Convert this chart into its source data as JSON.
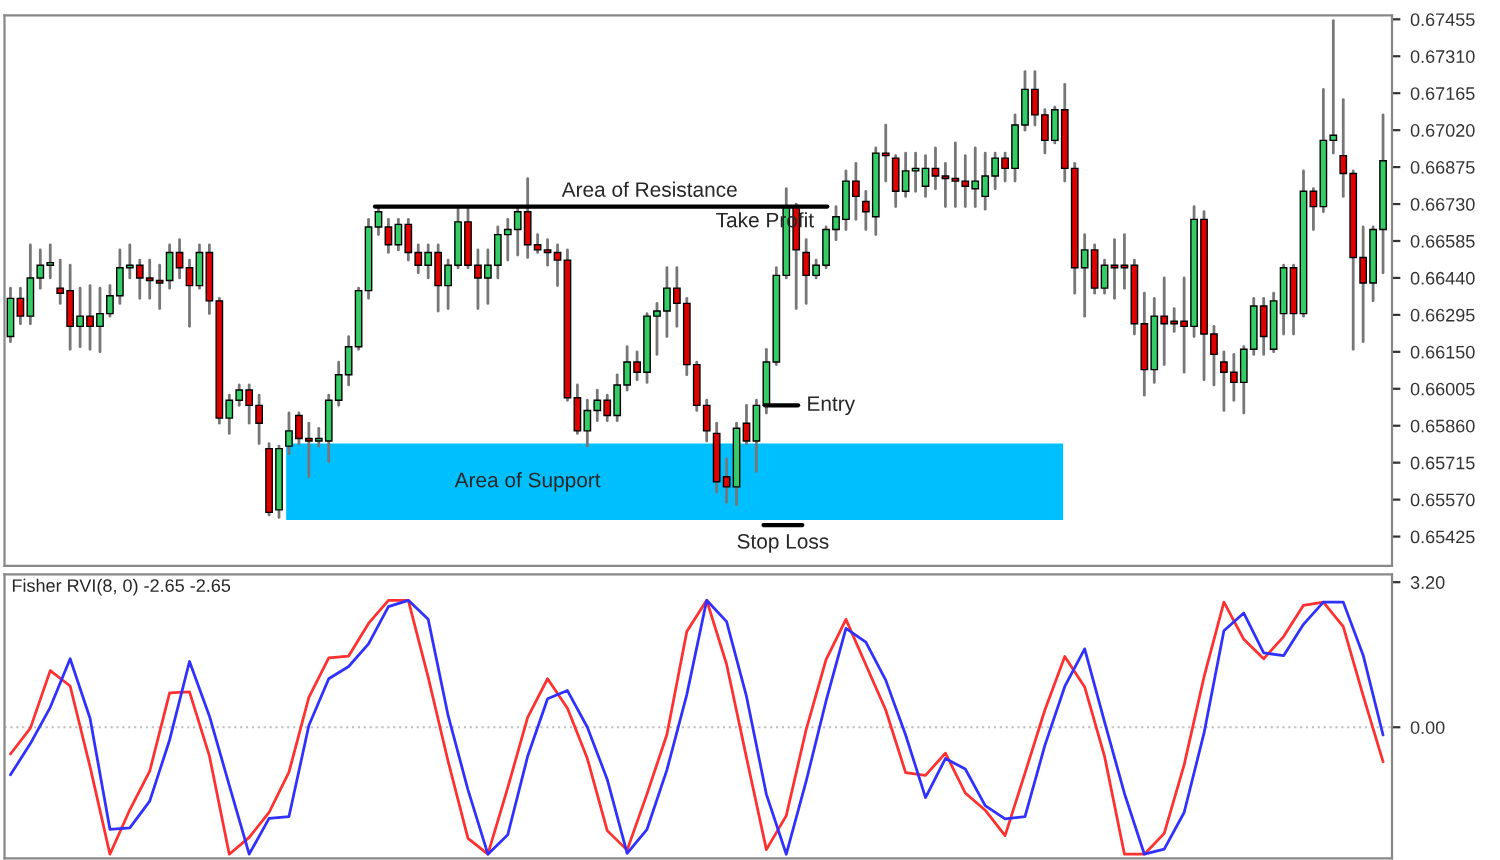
{
  "chart_data": [
    {
      "type": "candlestick",
      "categories": [
        null,
        null,
        null,
        null,
        null,
        null,
        null,
        null,
        null,
        null,
        null,
        null,
        null,
        null,
        null,
        null,
        null,
        null,
        null,
        null,
        null,
        null,
        null,
        null,
        null,
        null,
        null,
        null,
        null,
        null,
        null,
        null,
        null,
        null,
        null,
        null,
        null,
        null,
        null,
        null,
        null,
        null,
        null,
        null,
        null,
        null,
        null,
        null,
        null,
        null,
        null,
        null,
        null,
        null,
        null,
        null,
        null,
        null,
        null,
        null,
        null,
        null,
        null,
        null,
        null,
        null,
        null,
        null,
        null,
        null,
        null,
        null,
        null,
        null,
        null,
        null,
        null,
        null,
        null,
        null,
        null,
        null,
        null,
        null,
        null,
        null,
        null,
        null,
        null,
        null,
        null,
        null,
        null,
        null,
        null,
        null,
        null,
        null,
        null,
        null,
        null,
        null,
        null,
        null,
        null,
        null,
        null,
        null,
        null,
        null,
        null,
        null,
        null,
        null,
        null,
        null,
        null,
        null,
        null,
        null,
        null,
        null,
        null,
        null,
        null,
        null,
        null,
        null,
        null,
        null,
        null,
        null,
        null,
        null,
        null,
        null,
        null,
        null,
        null
      ],
      "ohlc": [
        [
          0.6621,
          0.664,
          0.6619,
          0.6636
        ],
        [
          0.6636,
          0.664,
          0.6626,
          0.6629
        ],
        [
          0.6629,
          0.6657,
          0.6626,
          0.6644
        ],
        [
          0.6644,
          0.6655,
          0.664,
          0.6649
        ],
        [
          0.6649,
          0.6657,
          0.6644,
          0.665
        ],
        [
          0.664,
          0.6651,
          0.6634,
          0.6638
        ],
        [
          0.6639,
          0.6649,
          0.6616,
          0.6625
        ],
        [
          0.6625,
          0.664,
          0.6617,
          0.6629
        ],
        [
          0.6629,
          0.6641,
          0.6616,
          0.6625
        ],
        [
          0.6625,
          0.664,
          0.6615,
          0.663
        ],
        [
          0.663,
          0.6641,
          0.6629,
          0.6637
        ],
        [
          0.6637,
          0.6655,
          0.6634,
          0.6648
        ],
        [
          0.6648,
          0.6657,
          0.6644,
          0.6649
        ],
        [
          0.6649,
          0.6651,
          0.6636,
          0.6644
        ],
        [
          0.6644,
          0.6651,
          0.6636,
          0.6643
        ],
        [
          0.6643,
          0.6649,
          0.6632,
          0.6642
        ],
        [
          0.6643,
          0.6657,
          0.664,
          0.6654
        ],
        [
          0.6654,
          0.6659,
          0.6644,
          0.6648
        ],
        [
          0.6648,
          0.6651,
          0.6625,
          0.6641
        ],
        [
          0.6641,
          0.6657,
          0.664,
          0.6654
        ],
        [
          0.6654,
          0.6657,
          0.663,
          0.6635
        ],
        [
          0.6635,
          0.6636,
          0.6587,
          0.6589
        ],
        [
          0.6589,
          0.6598,
          0.6583,
          0.6596
        ],
        [
          0.6596,
          0.6602,
          0.6594,
          0.66
        ],
        [
          0.66,
          0.6602,
          0.6587,
          0.6594
        ],
        [
          0.6594,
          0.6598,
          0.6579,
          0.6587
        ],
        [
          0.6577,
          0.6579,
          0.6551,
          0.6552
        ],
        [
          0.6553,
          0.6578,
          0.655,
          0.6577
        ],
        [
          0.6578,
          0.6591,
          0.6575,
          0.6584
        ],
        [
          0.659,
          0.6591,
          0.6579,
          0.6581
        ],
        [
          0.6581,
          0.6587,
          0.6566,
          0.658
        ],
        [
          0.658,
          0.6585,
          0.6578,
          0.6581
        ],
        [
          0.658,
          0.6598,
          0.6572,
          0.6596
        ],
        [
          0.6596,
          0.6611,
          0.6594,
          0.6606
        ],
        [
          0.6606,
          0.6621,
          0.6602,
          0.6617
        ],
        [
          0.6617,
          0.664,
          0.6616,
          0.6639
        ],
        [
          0.6639,
          0.6667,
          0.6636,
          0.6664
        ],
        [
          0.6664,
          0.6672,
          0.6661,
          0.667
        ],
        [
          0.6664,
          0.6667,
          0.6654,
          0.6657
        ],
        [
          0.6657,
          0.6667,
          0.6655,
          0.6665
        ],
        [
          0.6665,
          0.6667,
          0.6651,
          0.6654
        ],
        [
          0.6654,
          0.6657,
          0.6646,
          0.6649
        ],
        [
          0.6649,
          0.6657,
          0.6644,
          0.6654
        ],
        [
          0.6654,
          0.6657,
          0.6631,
          0.6641
        ],
        [
          0.6641,
          0.6651,
          0.6632,
          0.6649
        ],
        [
          0.6649,
          0.6672,
          0.6648,
          0.6666
        ],
        [
          0.6666,
          0.6672,
          0.6648,
          0.6649
        ],
        [
          0.6649,
          0.6655,
          0.6632,
          0.6644
        ],
        [
          0.6644,
          0.6655,
          0.6634,
          0.6649
        ],
        [
          0.6649,
          0.6664,
          0.6644,
          0.6661
        ],
        [
          0.6661,
          0.6667,
          0.6651,
          0.6663
        ],
        [
          0.6663,
          0.6672,
          0.6653,
          0.667
        ],
        [
          0.667,
          0.6683,
          0.6652,
          0.6657
        ],
        [
          0.6657,
          0.6661,
          0.6654,
          0.6655
        ],
        [
          0.6655,
          0.6659,
          0.6649,
          0.6654
        ],
        [
          0.6654,
          0.6657,
          0.6641,
          0.6651
        ],
        [
          0.6651,
          0.6655,
          0.6596,
          0.6597
        ],
        [
          0.6597,
          0.6602,
          0.6583,
          0.6584
        ],
        [
          0.6584,
          0.6596,
          0.6578,
          0.6592
        ],
        [
          0.6592,
          0.66,
          0.6588,
          0.6596
        ],
        [
          0.6596,
          0.6598,
          0.6588,
          0.659
        ],
        [
          0.659,
          0.6606,
          0.6588,
          0.6602
        ],
        [
          0.6602,
          0.6617,
          0.66,
          0.6611
        ],
        [
          0.6611,
          0.6615,
          0.6604,
          0.6607
        ],
        [
          0.6607,
          0.663,
          0.6603,
          0.6629
        ],
        [
          0.6629,
          0.6634,
          0.6614,
          0.6631
        ],
        [
          0.6631,
          0.6648,
          0.6621,
          0.664
        ],
        [
          0.664,
          0.6648,
          0.6625,
          0.6634
        ],
        [
          0.6634,
          0.6636,
          0.6606,
          0.661
        ],
        [
          0.661,
          0.6611,
          0.6592,
          0.6594
        ],
        [
          0.6594,
          0.6596,
          0.658,
          0.6584
        ],
        [
          0.6583,
          0.6587,
          0.656,
          0.6564
        ],
        [
          0.6566,
          0.6573,
          0.6556,
          0.6562
        ],
        [
          0.6562,
          0.6587,
          0.6555,
          0.6585
        ],
        [
          0.6587,
          0.6594,
          0.6579,
          0.658
        ],
        [
          0.658,
          0.6596,
          0.6568,
          0.6594
        ],
        [
          0.6594,
          0.6616,
          0.6591,
          0.6611
        ],
        [
          0.6611,
          0.6648,
          0.661,
          0.6645
        ],
        [
          0.6645,
          0.6679,
          0.6644,
          0.6672
        ],
        [
          0.6672,
          0.6673,
          0.6632,
          0.6655
        ],
        [
          0.6654,
          0.6659,
          0.6634,
          0.6645
        ],
        [
          0.6645,
          0.6651,
          0.6644,
          0.6649
        ],
        [
          0.6649,
          0.6664,
          0.6648,
          0.6663
        ],
        [
          0.6663,
          0.6672,
          0.6659,
          0.6668
        ],
        [
          0.6667,
          0.6686,
          0.6663,
          0.6682
        ],
        [
          0.6682,
          0.6689,
          0.6667,
          0.6676
        ],
        [
          0.6674,
          0.6678,
          0.6663,
          0.667
        ],
        [
          0.6668,
          0.6695,
          0.6661,
          0.6693
        ],
        [
          0.6693,
          0.6704,
          0.6682,
          0.6692
        ],
        [
          0.6691,
          0.6692,
          0.6672,
          0.6678
        ],
        [
          0.6678,
          0.6693,
          0.6676,
          0.6686
        ],
        [
          0.6686,
          0.6693,
          0.6678,
          0.6687
        ],
        [
          0.668,
          0.6692,
          0.6676,
          0.6687
        ],
        [
          0.6687,
          0.6695,
          0.6679,
          0.6684
        ],
        [
          0.6684,
          0.6689,
          0.6672,
          0.6683
        ],
        [
          0.6683,
          0.6697,
          0.6672,
          0.6682
        ],
        [
          0.6682,
          0.6692,
          0.6672,
          0.668
        ],
        [
          0.6679,
          0.6695,
          0.6672,
          0.6682
        ],
        [
          0.6676,
          0.6693,
          0.6671,
          0.6684
        ],
        [
          0.6684,
          0.6693,
          0.6679,
          0.6691
        ],
        [
          0.6691,
          0.6693,
          0.6682,
          0.6687
        ],
        [
          0.6687,
          0.6708,
          0.6682,
          0.6704
        ],
        [
          0.6704,
          0.6725,
          0.6702,
          0.6718
        ],
        [
          0.6718,
          0.6725,
          0.6704,
          0.6708
        ],
        [
          0.6708,
          0.671,
          0.6693,
          0.6698
        ],
        [
          0.6698,
          0.6711,
          0.6697,
          0.671
        ],
        [
          0.671,
          0.672,
          0.6682,
          0.6687
        ],
        [
          0.6687,
          0.6689,
          0.6638,
          0.6648
        ],
        [
          0.6648,
          0.6661,
          0.6629,
          0.6655
        ],
        [
          0.6655,
          0.6657,
          0.6638,
          0.664
        ],
        [
          0.664,
          0.6651,
          0.6638,
          0.6649
        ],
        [
          0.6649,
          0.6659,
          0.6636,
          0.6648
        ],
        [
          0.6649,
          0.6661,
          0.664,
          0.6648
        ],
        [
          0.6649,
          0.6651,
          0.6622,
          0.6626
        ],
        [
          0.6626,
          0.6638,
          0.6598,
          0.6608
        ],
        [
          0.6608,
          0.6636,
          0.6603,
          0.6629
        ],
        [
          0.6629,
          0.6644,
          0.661,
          0.6626
        ],
        [
          0.6627,
          0.6632,
          0.6623,
          0.6626
        ],
        [
          0.6627,
          0.6644,
          0.6607,
          0.6625
        ],
        [
          0.6625,
          0.6672,
          0.6621,
          0.6667
        ],
        [
          0.6667,
          0.667,
          0.6604,
          0.6622
        ],
        [
          0.6622,
          0.6625,
          0.6602,
          0.6614
        ],
        [
          0.6611,
          0.6615,
          0.6592,
          0.6607
        ],
        [
          0.6607,
          0.6614,
          0.6596,
          0.6603
        ],
        [
          0.6603,
          0.6617,
          0.6591,
          0.6616
        ],
        [
          0.6616,
          0.6636,
          0.6614,
          0.6633
        ],
        [
          0.6633,
          0.6636,
          0.6614,
          0.6621
        ],
        [
          0.6616,
          0.6638,
          0.6615,
          0.6635
        ],
        [
          0.663,
          0.6649,
          0.6622,
          0.6648
        ],
        [
          0.6648,
          0.6649,
          0.6622,
          0.663
        ],
        [
          0.663,
          0.6686,
          0.6629,
          0.6678
        ],
        [
          0.6678,
          0.6679,
          0.6663,
          0.6672
        ],
        [
          0.6672,
          0.6718,
          0.667,
          0.6698
        ],
        [
          0.6698,
          0.6745,
          0.6693,
          0.67
        ],
        [
          0.6692,
          0.6714,
          0.6676,
          0.6685
        ],
        [
          0.6685,
          0.6686,
          0.6616,
          0.6652
        ],
        [
          0.6652,
          0.6664,
          0.6619,
          0.6642
        ],
        [
          0.6642,
          0.6664,
          0.6635,
          0.6663
        ],
        [
          0.6663,
          0.6708,
          0.6646,
          0.669
        ]
      ],
      "ylim": [
        0.6531,
        0.6747
      ],
      "yticks": [
        {
          "value": 0.67455,
          "label": "0.67455"
        },
        {
          "value": 0.6731,
          "label": "0.67310"
        },
        {
          "value": 0.67165,
          "label": "0.67165"
        },
        {
          "value": 0.6702,
          "label": "0.67020"
        },
        {
          "value": 0.66875,
          "label": "0.66875"
        },
        {
          "value": 0.6673,
          "label": "0.66730"
        },
        {
          "value": 0.66585,
          "label": "0.66585"
        },
        {
          "value": 0.6644,
          "label": "0.66440"
        },
        {
          "value": 0.66295,
          "label": "0.66295"
        },
        {
          "value": 0.6615,
          "label": "0.66150"
        },
        {
          "value": 0.66005,
          "label": "0.66005"
        },
        {
          "value": 0.6586,
          "label": "0.65860"
        },
        {
          "value": 0.65715,
          "label": "0.65715"
        },
        {
          "value": 0.6557,
          "label": "0.65570"
        },
        {
          "value": 0.65425,
          "label": "0.65425"
        }
      ],
      "ref_lines": [
        {
          "axis": "y",
          "value": 0.6672,
          "label": "Area of Resistance",
          "color": "#000000"
        },
        {
          "axis": "y",
          "value": 0.6594,
          "label": "Entry",
          "color": "#000000"
        },
        {
          "axis": "y",
          "value": 0.6547,
          "label": "Stop Loss",
          "color": "#000000"
        }
      ],
      "bands": [
        {
          "axis": "y",
          "from": 0.6549,
          "to": 0.6579,
          "label": "Area of Support",
          "color": "#00bfff"
        }
      ],
      "annotations": [
        "Take Profit"
      ],
      "tick_labels": "y",
      "grid": false
    },
    {
      "type": "line",
      "title": "Fisher RVI(8, 0) -2.65 -2.65",
      "categories": [
        null,
        null,
        null,
        null,
        null,
        null,
        null,
        null,
        null,
        null,
        null,
        null,
        null,
        null,
        null,
        null,
        null,
        null,
        null,
        null,
        null,
        null,
        null,
        null,
        null,
        null,
        null,
        null,
        null,
        null,
        null,
        null,
        null,
        null,
        null,
        null,
        null,
        null,
        null,
        null,
        null,
        null,
        null,
        null,
        null,
        null,
        null,
        null,
        null,
        null,
        null,
        null,
        null,
        null,
        null,
        null,
        null,
        null,
        null,
        null,
        null,
        null,
        null,
        null,
        null,
        null,
        null,
        null,
        null,
        null
      ],
      "series": [
        {
          "color": "#ff3030",
          "values": [
            -0.59,
            -0.02,
            1.25,
            0.91,
            -0.87,
            -2.8,
            -1.82,
            -0.97,
            0.76,
            0.78,
            -0.63,
            -2.8,
            -2.43,
            -1.88,
            -0.99,
            0.66,
            1.53,
            1.57,
            2.29,
            2.8,
            2.8,
            1.1,
            -0.75,
            -2.45,
            -2.8,
            -1.33,
            0.22,
            1.07,
            0.42,
            -0.69,
            -2.28,
            -2.71,
            -1.47,
            -0.16,
            2.11,
            2.8,
            1.39,
            -0.67,
            -2.7,
            -1.95,
            -0.05,
            1.49,
            2.38,
            1.38,
            0.38,
            -1.0,
            -1.06,
            -0.57,
            -1.45,
            -1.83,
            -2.39,
            -1.01,
            0.38,
            1.56,
            0.89,
            -0.64,
            -2.8,
            -2.8,
            -2.34,
            -0.83,
            1.11,
            2.76,
            1.94,
            1.51,
            2.0,
            2.69,
            2.76,
            2.22,
            0.7,
            -0.76
          ]
        },
        {
          "color": "#3030ff",
          "values": [
            -1.05,
            -0.36,
            0.44,
            1.51,
            0.2,
            -2.25,
            -2.22,
            -1.63,
            -0.28,
            1.45,
            0.25,
            -1.28,
            -2.8,
            -2.01,
            -1.97,
            0.04,
            1.07,
            1.34,
            1.84,
            2.66,
            2.8,
            2.38,
            0.26,
            -1.38,
            -2.8,
            -2.37,
            -0.64,
            0.63,
            0.81,
            0.0,
            -1.15,
            -2.78,
            -2.25,
            -0.94,
            0.72,
            2.8,
            2.33,
            0.68,
            -1.48,
            -2.8,
            -1.19,
            0.58,
            2.18,
            1.88,
            1.04,
            -0.17,
            -1.55,
            -0.69,
            -0.92,
            -1.73,
            -2.02,
            -1.97,
            -0.4,
            0.9,
            1.73,
            0.12,
            -1.46,
            -2.8,
            -2.69,
            -1.88,
            -0.13,
            2.13,
            2.52,
            1.64,
            1.58,
            2.27,
            2.76,
            2.76,
            1.59,
            -0.17
          ]
        }
      ],
      "ylim": [
        -2.89,
        3.37
      ],
      "yticks": [
        {
          "value": 3.2,
          "label": "3.20"
        },
        {
          "value": 0.0,
          "label": "0.00"
        }
      ],
      "ref_lines": [
        {
          "axis": "y",
          "value": 0,
          "color": "#c0c0c0",
          "line_style": "dotted"
        }
      ],
      "tick_labels": "y",
      "grid": false
    }
  ]
}
